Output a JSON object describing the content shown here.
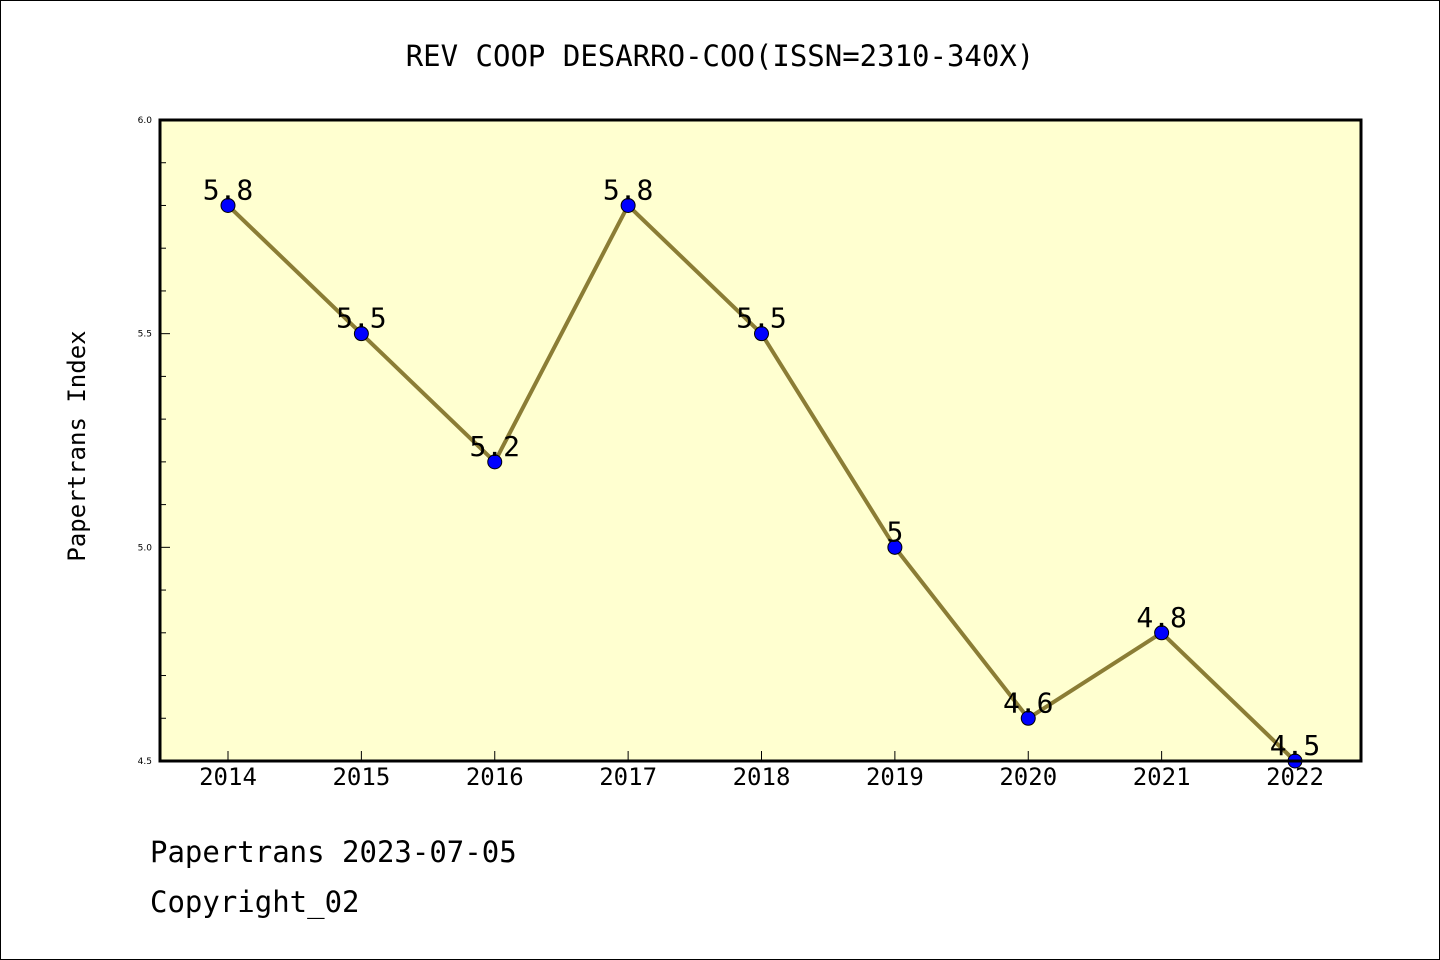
{
  "chart_data": {
    "type": "line",
    "title": "REV COOP DESARRO-COO(ISSN=2310-340X)",
    "xlabel": "",
    "ylabel": "Papertrans Index",
    "x": [
      "2014",
      "2015",
      "2016",
      "2017",
      "2018",
      "2019",
      "2020",
      "2021",
      "2022"
    ],
    "series": [
      {
        "values": [
          5.8,
          5.5,
          5.2,
          5.8,
          5.5,
          5.0,
          4.6,
          4.8,
          4.5
        ]
      }
    ],
    "data_labels": [
      "5.8",
      "5.5",
      "5.2",
      "5.8",
      "5.5",
      "5",
      "4.6",
      "4.8",
      "4.5"
    ],
    "ylim": [
      4.5,
      6.0
    ],
    "yticks": [
      "4.5",
      "5.0",
      "5.5",
      "6.0"
    ],
    "yminor_step": 0.1,
    "grid": false,
    "colors": {
      "plot_background": "#ffffd0",
      "line": "#8b7d35",
      "marker": "#0000ff",
      "axes": "#000000"
    }
  },
  "footer": {
    "source_line": "Papertrans 2023-07-05",
    "copyright": "Copyright_02"
  }
}
